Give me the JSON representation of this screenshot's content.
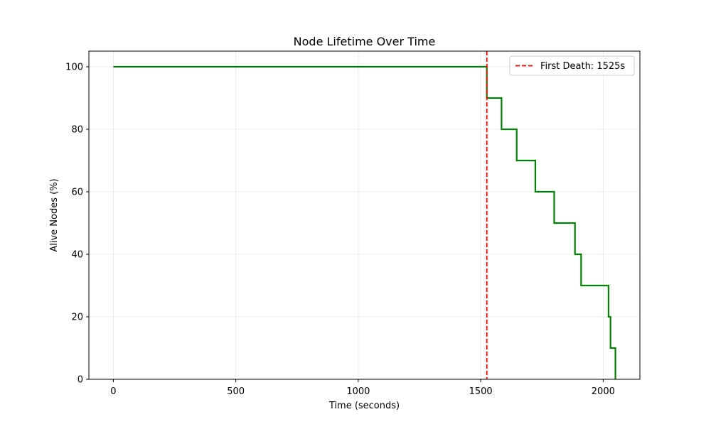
{
  "chart_data": {
    "type": "line",
    "title": "Node Lifetime Over Time",
    "xlabel": "Time (seconds)",
    "ylabel": "Alive Nodes (%)",
    "xlim": [
      -100,
      2150
    ],
    "ylim": [
      0,
      105
    ],
    "xticks": [
      0,
      500,
      1000,
      1500,
      2000
    ],
    "yticks": [
      0,
      20,
      40,
      60,
      80,
      100
    ],
    "xtick_labels": [
      "0",
      "500",
      "1000",
      "1500",
      "2000"
    ],
    "ytick_labels": [
      "0",
      "20",
      "40",
      "60",
      "80",
      "100"
    ],
    "grid": true,
    "legend_position": "top-right",
    "series": [
      {
        "color": "#008000",
        "step": "post",
        "x": [
          0,
          1525,
          1585,
          1647,
          1723,
          1800,
          1885,
          1910,
          2022,
          2030,
          2050
        ],
        "y": [
          100,
          90,
          80,
          70,
          60,
          50,
          40,
          30,
          20,
          10,
          0
        ]
      }
    ],
    "annotations": [
      {
        "type": "vline",
        "x": 1525,
        "color": "#ff0000",
        "linestyle": "dashed",
        "label": "First Death: 1525s"
      }
    ]
  }
}
